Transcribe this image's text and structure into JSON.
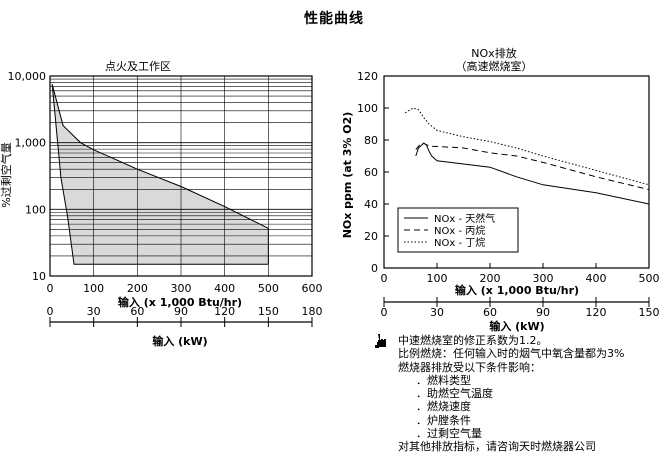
{
  "page": {
    "title": "性能曲线"
  },
  "note": {
    "icon": "hand-pointer-icon",
    "line1": "中速燃烧室的修正系数为1.2。",
    "line2": "比例燃烧：任何输入时的烟气中氧含量都为3%",
    "line3": "燃烧器排放受以下条件影响：",
    "factors": [
      "．燃料类型",
      "．助燃空气温度",
      "．燃烧速度",
      "．炉膛条件",
      "．过剩空气量"
    ],
    "footer": "对其他排放指标，请咨询天时燃烧器公司"
  },
  "chart_data": [
    {
      "type": "area",
      "title": "点火及工作区",
      "xlabel": "输入 (x 1,000 Btu/hr)",
      "x2label": "输入 (kW)",
      "ylabel": "%过剩空气量",
      "y_scale": "log",
      "xlim": [
        0,
        600
      ],
      "ylim": [
        10,
        10000
      ],
      "x_ticks": [
        "0",
        "100",
        "200",
        "300",
        "400",
        "500",
        "600"
      ],
      "x2_ticks": [
        "0",
        "30",
        "60",
        "90",
        "120",
        "150",
        "180"
      ],
      "y_ticks": [
        "10,000",
        "1,000",
        "100",
        "10"
      ],
      "y_tick_values": [
        10000,
        1000,
        100,
        10
      ],
      "grid": true,
      "fill_color": "#d9d9d9",
      "region": {
        "upper": [
          [
            5,
            7500
          ],
          [
            30,
            1800
          ],
          [
            70,
            1000
          ],
          [
            100,
            780
          ],
          [
            150,
            560
          ],
          [
            200,
            400
          ],
          [
            300,
            220
          ],
          [
            400,
            110
          ],
          [
            500,
            52
          ]
        ],
        "lower": [
          [
            5,
            7500
          ],
          [
            25,
            300
          ],
          [
            40,
            80
          ],
          [
            55,
            15
          ],
          [
            500,
            15
          ]
        ]
      }
    },
    {
      "type": "line",
      "title": "NOx排放",
      "subtitle": "（高速燃烧室）",
      "xlabel": "输入 (x 1,000 Btu/hr)",
      "x2label": "输入 (kW)",
      "ylabel": "NOx ppm (at 3% O2)",
      "xlim": [
        0,
        500
      ],
      "ylim": [
        0,
        120
      ],
      "x_ticks": [
        "0",
        "100",
        "200",
        "300",
        "400",
        "500"
      ],
      "x2_ticks": [
        "0",
        "30",
        "60",
        "90",
        "120",
        "150"
      ],
      "y_ticks": [
        "120",
        "100",
        "80",
        "60",
        "40",
        "20",
        "0"
      ],
      "grid": false,
      "legend_position": "bottom-left",
      "series": [
        {
          "name": "NOx - 天然气",
          "style": "solid",
          "x": [
            60,
            65,
            75,
            80,
            85,
            90,
            100,
            150,
            200,
            250,
            300,
            400,
            500
          ],
          "y": [
            70,
            75,
            78,
            77,
            73,
            70,
            67,
            65,
            63,
            57,
            52,
            47,
            40
          ]
        },
        {
          "name": "NOx - 丙烷",
          "style": "dashed",
          "x": [
            60,
            70,
            75,
            80,
            90,
            100,
            150,
            200,
            250,
            300,
            400,
            500
          ],
          "y": [
            74,
            78,
            78,
            77,
            76,
            76,
            75,
            72,
            70,
            66,
            57,
            49
          ]
        },
        {
          "name": "NOx - 丁烷",
          "style": "dotted",
          "x": [
            40,
            55,
            65,
            75,
            85,
            100,
            150,
            200,
            250,
            300,
            400,
            500
          ],
          "y": [
            97,
            100,
            99,
            94,
            90,
            86,
            82,
            79,
            75,
            70,
            61,
            52
          ]
        }
      ]
    }
  ]
}
